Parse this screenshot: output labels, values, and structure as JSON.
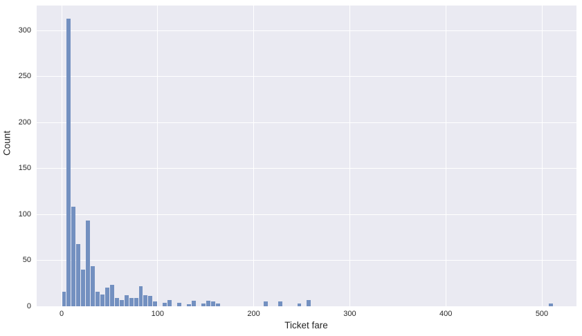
{
  "figure": {
    "xlabel": "Ticket fare",
    "ylabel": "Count",
    "colors": {
      "figure_bg": "#ffffff",
      "plot_bg": "#eaeaf2",
      "grid": "#ffffff",
      "bar": "#7390c0",
      "bar_base": "#4c72b0",
      "text": "#262626"
    }
  },
  "chart_data": {
    "type": "bar",
    "subtype": "histogram",
    "title": "",
    "xlabel": "Ticket fare",
    "ylabel": "Count",
    "x_ticks": [
      0,
      100,
      200,
      300,
      400,
      500
    ],
    "y_ticks": [
      0,
      50,
      100,
      150,
      200,
      250,
      300
    ],
    "xlim": [
      -26,
      537
    ],
    "ylim": [
      0,
      328
    ],
    "grid": true,
    "legend": false,
    "bin_width": 5,
    "bins": [
      {
        "start": 0,
        "count": 16
      },
      {
        "start": 5,
        "count": 313
      },
      {
        "start": 10,
        "count": 108
      },
      {
        "start": 15,
        "count": 68
      },
      {
        "start": 20,
        "count": 40
      },
      {
        "start": 25,
        "count": 93
      },
      {
        "start": 30,
        "count": 44
      },
      {
        "start": 35,
        "count": 16
      },
      {
        "start": 40,
        "count": 13
      },
      {
        "start": 45,
        "count": 20
      },
      {
        "start": 50,
        "count": 23
      },
      {
        "start": 55,
        "count": 9
      },
      {
        "start": 60,
        "count": 7
      },
      {
        "start": 65,
        "count": 12
      },
      {
        "start": 70,
        "count": 9
      },
      {
        "start": 75,
        "count": 9
      },
      {
        "start": 80,
        "count": 22
      },
      {
        "start": 85,
        "count": 12
      },
      {
        "start": 90,
        "count": 11
      },
      {
        "start": 95,
        "count": 5
      },
      {
        "start": 105,
        "count": 4
      },
      {
        "start": 110,
        "count": 7
      },
      {
        "start": 120,
        "count": 4
      },
      {
        "start": 130,
        "count": 2
      },
      {
        "start": 135,
        "count": 6
      },
      {
        "start": 145,
        "count": 3
      },
      {
        "start": 150,
        "count": 6
      },
      {
        "start": 155,
        "count": 5
      },
      {
        "start": 160,
        "count": 3
      },
      {
        "start": 210,
        "count": 5
      },
      {
        "start": 225,
        "count": 5
      },
      {
        "start": 245,
        "count": 3
      },
      {
        "start": 255,
        "count": 7
      },
      {
        "start": 507,
        "count": 3
      }
    ]
  }
}
